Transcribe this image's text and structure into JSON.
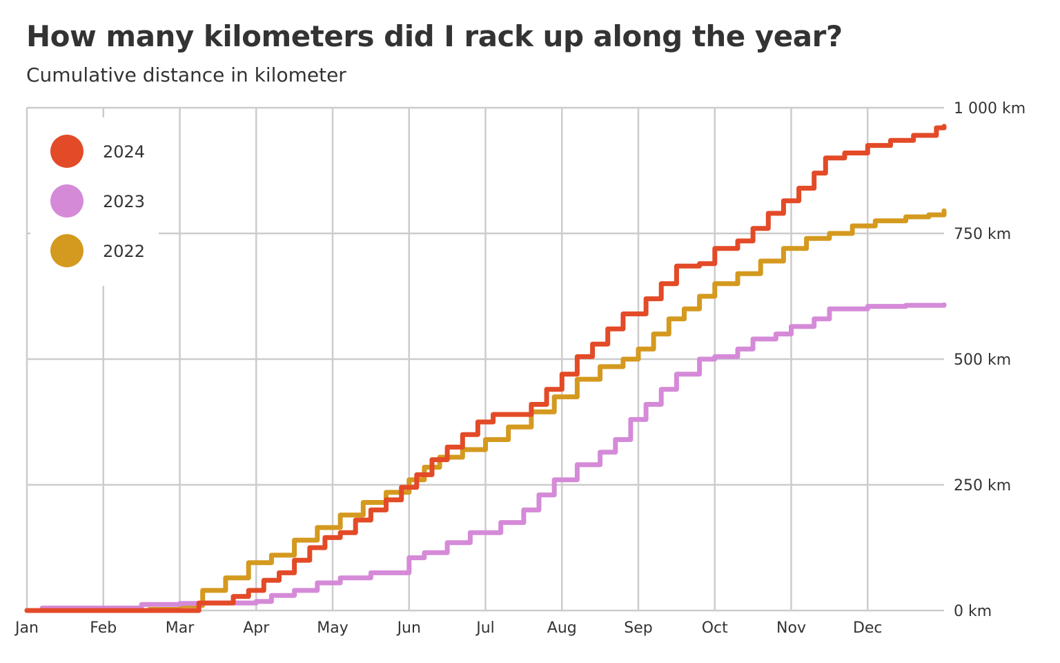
{
  "title": "How many kilometers did I rack up along the year?",
  "subtitle": "Cumulative distance in kilometer",
  "chart_data": {
    "type": "line",
    "title": "How many kilometers did I rack up along the year?",
    "subtitle": "Cumulative distance in kilometer",
    "xlabel": "",
    "ylabel": "",
    "x_unit": "month (0 = Jan 1, 12 = end of Dec)",
    "xlim": [
      0,
      12
    ],
    "ylim": [
      0,
      1000
    ],
    "x_ticks": [
      {
        "value": 0,
        "label": "Jan"
      },
      {
        "value": 1,
        "label": "Feb"
      },
      {
        "value": 2,
        "label": "Mar"
      },
      {
        "value": 3,
        "label": "Apr"
      },
      {
        "value": 4,
        "label": "May"
      },
      {
        "value": 5,
        "label": "Jun"
      },
      {
        "value": 6,
        "label": "Jul"
      },
      {
        "value": 7,
        "label": "Aug"
      },
      {
        "value": 8,
        "label": "Sep"
      },
      {
        "value": 9,
        "label": "Oct"
      },
      {
        "value": 10,
        "label": "Nov"
      },
      {
        "value": 11,
        "label": "Dec"
      }
    ],
    "y_ticks": [
      {
        "value": 0,
        "label": "0 km"
      },
      {
        "value": 250,
        "label": "250 km"
      },
      {
        "value": 500,
        "label": "500 km"
      },
      {
        "value": 750,
        "label": "750 km"
      },
      {
        "value": 1000,
        "label": "1 000 km"
      }
    ],
    "grid": true,
    "legend_position": "top-left",
    "series": [
      {
        "name": "2024",
        "color": "#e34a27",
        "x": [
          0,
          2.15,
          2.25,
          2.7,
          2.9,
          3.1,
          3.3,
          3.5,
          3.7,
          3.9,
          4.1,
          4.3,
          4.5,
          4.7,
          4.9,
          5.1,
          5.3,
          5.5,
          5.7,
          5.9,
          6.1,
          6.4,
          6.6,
          6.8,
          7.0,
          7.2,
          7.4,
          7.6,
          7.8,
          8.1,
          8.3,
          8.5,
          8.8,
          9.0,
          9.3,
          9.5,
          9.7,
          9.9,
          10.1,
          10.3,
          10.45,
          10.7,
          11.0,
          11.3,
          11.6,
          11.9,
          12.0
        ],
        "y": [
          0,
          0,
          15,
          28,
          40,
          60,
          75,
          100,
          125,
          145,
          155,
          180,
          200,
          220,
          245,
          270,
          300,
          325,
          350,
          375,
          390,
          390,
          410,
          440,
          470,
          505,
          530,
          560,
          590,
          620,
          650,
          685,
          690,
          720,
          735,
          760,
          790,
          815,
          840,
          870,
          900,
          910,
          925,
          935,
          945,
          960,
          963
        ]
      },
      {
        "name": "2023",
        "color": "#d58ad8",
        "x": [
          0,
          0.2,
          1.5,
          2.0,
          2.3,
          3.0,
          3.2,
          3.5,
          3.8,
          4.1,
          4.5,
          5.0,
          5.2,
          5.5,
          5.8,
          6.2,
          6.5,
          6.7,
          6.9,
          7.2,
          7.5,
          7.7,
          7.9,
          8.1,
          8.3,
          8.5,
          8.8,
          9.0,
          9.3,
          9.5,
          9.8,
          10.0,
          10.3,
          10.5,
          11.0,
          11.5,
          12.0
        ],
        "y": [
          0,
          5,
          12,
          14,
          15,
          18,
          30,
          40,
          55,
          65,
          75,
          105,
          115,
          135,
          155,
          175,
          200,
          230,
          260,
          290,
          315,
          340,
          380,
          410,
          440,
          470,
          500,
          505,
          520,
          540,
          550,
          565,
          580,
          600,
          605,
          607,
          608
        ]
      },
      {
        "name": "2022",
        "color": "#d4991f",
        "x": [
          0,
          1.6,
          2.0,
          2.3,
          2.6,
          2.9,
          3.2,
          3.5,
          3.8,
          4.1,
          4.4,
          4.7,
          5.0,
          5.2,
          5.4,
          5.7,
          6.0,
          6.3,
          6.6,
          6.9,
          7.2,
          7.5,
          7.8,
          8.0,
          8.2,
          8.4,
          8.6,
          8.8,
          9.0,
          9.3,
          9.6,
          9.9,
          10.2,
          10.5,
          10.8,
          11.1,
          11.5,
          11.8,
          12.0
        ],
        "y": [
          0,
          2,
          10,
          40,
          65,
          95,
          110,
          140,
          165,
          190,
          215,
          235,
          260,
          285,
          305,
          320,
          340,
          365,
          395,
          425,
          460,
          485,
          500,
          520,
          550,
          580,
          600,
          625,
          650,
          670,
          695,
          720,
          740,
          750,
          765,
          775,
          783,
          787,
          795
        ]
      }
    ]
  }
}
